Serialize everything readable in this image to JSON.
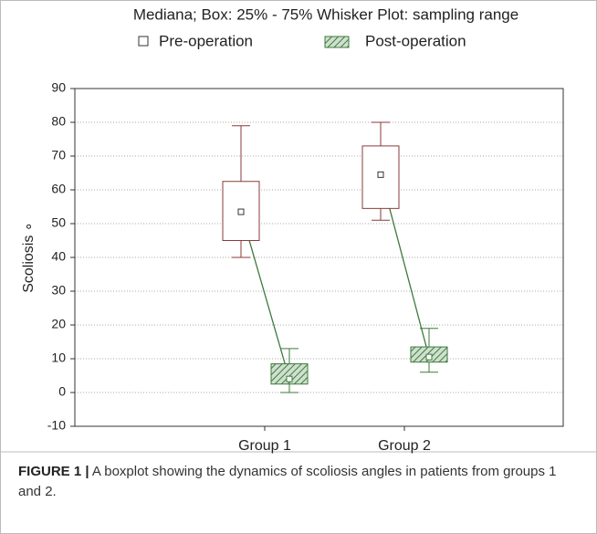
{
  "chart_data": {
    "type": "box",
    "title": "Mediana; Box: 25% - 75%  Whisker Plot: sampling range",
    "ylabel": "Scoliosis ∘",
    "categories": [
      "Group 1",
      "Group 2"
    ],
    "series": [
      {
        "name": "Pre-operation",
        "color": "#8b3a3a",
        "min": [
          40,
          51
        ],
        "q1": [
          45,
          54.5
        ],
        "median": [
          53.5,
          64.5
        ],
        "q3": [
          62.5,
          73
        ],
        "max": [
          79,
          80
        ]
      },
      {
        "name": "Post-operation",
        "color": "#3e7a3e",
        "min": [
          0,
          6
        ],
        "q1": [
          2.5,
          9
        ],
        "median": [
          4,
          10.5
        ],
        "q3": [
          8.5,
          13.5
        ],
        "max": [
          13,
          19
        ]
      }
    ],
    "ylim": [
      -10,
      90
    ],
    "yticks": [
      -10,
      0,
      10,
      20,
      30,
      40,
      50,
      60,
      70,
      80,
      90
    ],
    "grid": true
  },
  "caption": {
    "label": "FIGURE 1 |",
    "text": "A boxplot showing the dynamics of scoliosis angles in patients from groups 1 and 2."
  }
}
